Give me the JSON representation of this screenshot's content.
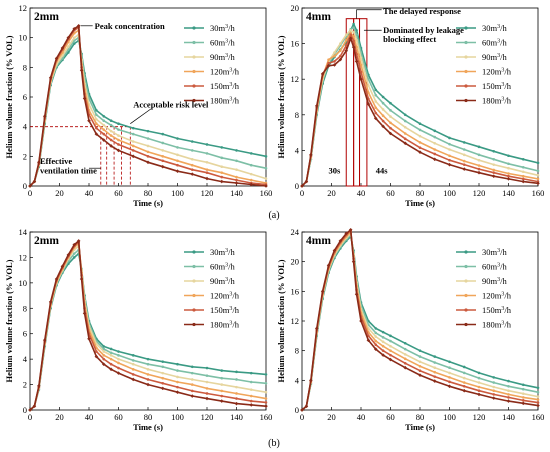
{
  "chart_data": [
    {
      "type": "line",
      "group": "(a)",
      "panel_tag": "2mm",
      "xlabel": "Time (s)",
      "ylabel": "Helium volume fraction (% VOL)",
      "xlim": [
        0,
        160
      ],
      "ylim": [
        0,
        12
      ],
      "xticks": [
        0,
        20,
        40,
        60,
        80,
        100,
        120,
        140,
        160
      ],
      "yticks": [
        0,
        2,
        4,
        6,
        8,
        10,
        12
      ],
      "legend_position": "top-right",
      "x": [
        0,
        3,
        6,
        10,
        14,
        18,
        22,
        26,
        30,
        33,
        35,
        37,
        40,
        45,
        50,
        55,
        60,
        70,
        80,
        90,
        100,
        110,
        120,
        130,
        140,
        150,
        160
      ],
      "series": [
        {
          "name": "30m³/h",
          "values": [
            0,
            0.3,
            1.3,
            4.2,
            6.8,
            8.0,
            8.5,
            9.0,
            9.6,
            9.8,
            8.9,
            7.6,
            6.2,
            5.1,
            4.7,
            4.4,
            4.2,
            3.9,
            3.7,
            3.5,
            3.2,
            3.0,
            2.8,
            2.6,
            2.4,
            2.2,
            2.0
          ]
        },
        {
          "name": "60m³/h",
          "values": [
            0,
            0.3,
            1.4,
            4.3,
            6.9,
            8.1,
            8.6,
            9.2,
            9.8,
            10.0,
            8.8,
            7.3,
            5.9,
            4.8,
            4.4,
            4.1,
            3.8,
            3.5,
            3.2,
            2.9,
            2.6,
            2.4,
            2.2,
            1.9,
            1.7,
            1.4,
            1.2
          ]
        },
        {
          "name": "90m³/h",
          "values": [
            0,
            0.3,
            1.4,
            4.4,
            7.0,
            8.2,
            8.8,
            9.4,
            10.0,
            10.2,
            8.5,
            6.9,
            5.5,
            4.5,
            4.1,
            3.7,
            3.4,
            3.0,
            2.7,
            2.4,
            2.1,
            1.8,
            1.6,
            1.3,
            1.1,
            0.8,
            0.5
          ]
        },
        {
          "name": "120m³/h",
          "values": [
            0,
            0.3,
            1.5,
            4.5,
            7.1,
            8.4,
            9.0,
            9.7,
            10.3,
            10.5,
            8.2,
            6.5,
            5.1,
            4.2,
            3.8,
            3.4,
            3.1,
            2.7,
            2.3,
            2.0,
            1.7,
            1.4,
            1.1,
            0.9,
            0.6,
            0.4,
            0.2
          ]
        },
        {
          "name": "150m³/h",
          "values": [
            0,
            0.3,
            1.5,
            4.6,
            7.2,
            8.5,
            9.2,
            9.9,
            10.5,
            10.7,
            8.0,
            6.2,
            4.8,
            3.9,
            3.5,
            3.1,
            2.8,
            2.4,
            2.0,
            1.7,
            1.4,
            1.1,
            0.9,
            0.6,
            0.4,
            0.2,
            0.1
          ]
        },
        {
          "name": "180m³/h",
          "values": [
            0,
            0.3,
            1.6,
            4.7,
            7.3,
            8.6,
            9.3,
            10.0,
            10.6,
            10.8,
            7.8,
            5.9,
            4.4,
            3.5,
            3.1,
            2.7,
            2.4,
            2.0,
            1.6,
            1.3,
            1.0,
            0.8,
            0.5,
            0.3,
            0.2,
            0.1,
            0.0
          ]
        }
      ],
      "annotations": [
        {
          "text": "Peak concentration",
          "x": 33,
          "y": 10.8
        },
        {
          "text": "Acceptable risk level",
          "x": 65,
          "y": 4
        },
        {
          "text": "Effective",
          "x": 45,
          "y": 0
        },
        {
          "text": "ventilation time",
          "x": 45,
          "y": 0
        }
      ],
      "reference_line": {
        "y": 4
      },
      "ventilation_times": [
        48,
        52,
        57,
        62,
        68
      ]
    },
    {
      "type": "line",
      "group": "(a)",
      "panel_tag": "4mm",
      "xlabel": "Time (s)",
      "ylabel": "Helium volume fraction (% VOL)",
      "xlim": [
        0,
        160
      ],
      "ylim": [
        0,
        20
      ],
      "xticks": [
        0,
        20,
        40,
        60,
        80,
        100,
        120,
        140,
        160
      ],
      "yticks": [
        0,
        4,
        8,
        12,
        16,
        20
      ],
      "legend_position": "top-right",
      "x": [
        0,
        3,
        6,
        10,
        14,
        18,
        22,
        26,
        30,
        33,
        35,
        37,
        40,
        45,
        50,
        55,
        60,
        70,
        80,
        90,
        100,
        110,
        120,
        130,
        140,
        150,
        160
      ],
      "series": [
        {
          "name": "30m³/h",
          "values": [
            0,
            0.5,
            3,
            8,
            11.5,
            13.5,
            14.5,
            15.3,
            16.2,
            17.5,
            18.2,
            17.5,
            15.5,
            12.5,
            10.8,
            10.0,
            9.3,
            8.0,
            7.0,
            6.2,
            5.4,
            4.9,
            4.4,
            3.9,
            3.4,
            3.0,
            2.6
          ]
        },
        {
          "name": "60m³/h",
          "values": [
            0,
            0.5,
            3,
            8.2,
            11.8,
            13.8,
            14.8,
            15.8,
            16.8,
            17.6,
            17.8,
            17.0,
            15.0,
            12.0,
            10.2,
            9.3,
            8.5,
            7.3,
            6.3,
            5.5,
            4.7,
            4.1,
            3.5,
            3.0,
            2.5,
            2.1,
            1.7
          ]
        },
        {
          "name": "90m³/h",
          "values": [
            0,
            0.5,
            3.2,
            8.4,
            12.0,
            14.0,
            15.0,
            16.0,
            17.0,
            17.5,
            17.3,
            16.4,
            14.4,
            11.3,
            9.5,
            8.6,
            7.8,
            6.6,
            5.6,
            4.8,
            4.1,
            3.5,
            2.9,
            2.4,
            2.0,
            1.6,
            1.2
          ]
        },
        {
          "name": "120m³/h",
          "values": [
            0,
            0.5,
            3.3,
            8.6,
            12.3,
            14.2,
            14.6,
            15.2,
            16.4,
            17.2,
            16.8,
            15.6,
            13.6,
            10.5,
            8.8,
            7.9,
            7.1,
            5.9,
            4.9,
            4.1,
            3.4,
            2.8,
            2.3,
            1.8,
            1.4,
            1.1,
            0.8
          ]
        },
        {
          "name": "150m³/h",
          "values": [
            0,
            0.5,
            3.4,
            8.8,
            12.5,
            13.8,
            14.0,
            14.6,
            15.8,
            17.0,
            16.3,
            14.8,
            12.8,
            9.8,
            8.2,
            7.3,
            6.5,
            5.3,
            4.3,
            3.6,
            2.9,
            2.4,
            1.9,
            1.5,
            1.1,
            0.8,
            0.5
          ]
        },
        {
          "name": "180m³/h",
          "values": [
            0,
            0.5,
            3.5,
            9.0,
            12.6,
            13.5,
            13.6,
            14.2,
            15.2,
            16.6,
            15.6,
            14.0,
            12.0,
            9.2,
            7.6,
            6.7,
            5.9,
            4.8,
            3.8,
            3.0,
            2.4,
            1.9,
            1.5,
            1.1,
            0.8,
            0.5,
            0.3
          ]
        }
      ],
      "annotations": [
        {
          "text": "The delayed response",
          "x": 52,
          "y": 19.5
        },
        {
          "text": "Dominated by leakage",
          "x": 52,
          "y": 17.5
        },
        {
          "text": "blocking effect",
          "x": 52,
          "y": 16.6
        },
        {
          "text": "30s",
          "x": 30,
          "y": 1.2
        },
        {
          "text": "44s",
          "x": 44,
          "y": 1.2
        }
      ],
      "highlight_boxes": [
        {
          "x": [
            30,
            35
          ],
          "y": [
            0,
            18.8
          ]
        },
        {
          "x": [
            35,
            39
          ],
          "y": [
            0,
            18.8
          ]
        },
        {
          "x": [
            39,
            44
          ],
          "y": [
            0,
            18.8
          ]
        }
      ]
    },
    {
      "type": "line",
      "group": "(b)",
      "panel_tag": "2mm",
      "xlabel": "Time (s)",
      "ylabel": "Helium volume fraction (% VOL)",
      "xlim": [
        0,
        160
      ],
      "ylim": [
        0,
        14
      ],
      "xticks": [
        0,
        20,
        40,
        60,
        80,
        100,
        120,
        140,
        160
      ],
      "yticks": [
        0,
        2,
        4,
        6,
        8,
        10,
        12,
        14
      ],
      "legend_position": "top-right",
      "x": [
        0,
        3,
        6,
        10,
        14,
        18,
        22,
        26,
        30,
        33,
        35,
        37,
        40,
        45,
        50,
        55,
        60,
        70,
        80,
        90,
        100,
        110,
        120,
        130,
        140,
        150,
        160
      ],
      "series": [
        {
          "name": "30m³/h",
          "values": [
            0,
            0.3,
            1.6,
            5.0,
            8.0,
            9.8,
            10.8,
            11.5,
            12.0,
            12.3,
            11.0,
            9.0,
            7.0,
            5.6,
            5.0,
            4.8,
            4.6,
            4.3,
            4.0,
            3.8,
            3.6,
            3.4,
            3.3,
            3.1,
            3.0,
            2.9,
            2.8
          ]
        },
        {
          "name": "60m³/h",
          "values": [
            0,
            0.3,
            1.7,
            5.1,
            8.1,
            9.9,
            10.9,
            11.7,
            12.3,
            12.6,
            11.1,
            8.8,
            6.8,
            5.4,
            4.8,
            4.5,
            4.3,
            3.9,
            3.6,
            3.4,
            3.1,
            2.9,
            2.7,
            2.5,
            2.4,
            2.2,
            2.1
          ]
        },
        {
          "name": "90m³/h",
          "values": [
            0,
            0.3,
            1.7,
            5.2,
            8.2,
            10.0,
            11.0,
            11.9,
            12.6,
            12.9,
            11.0,
            8.6,
            6.6,
            5.2,
            4.6,
            4.3,
            4.0,
            3.6,
            3.2,
            2.9,
            2.6,
            2.4,
            2.2,
            2.0,
            1.8,
            1.6,
            1.4
          ]
        },
        {
          "name": "120m³/h",
          "values": [
            0,
            0.3,
            1.8,
            5.3,
            8.3,
            10.1,
            11.1,
            12.0,
            12.8,
            13.1,
            10.8,
            8.3,
            6.3,
            4.9,
            4.3,
            4.0,
            3.7,
            3.2,
            2.8,
            2.5,
            2.2,
            2.0,
            1.7,
            1.5,
            1.3,
            1.1,
            0.9
          ]
        },
        {
          "name": "150m³/h",
          "values": [
            0,
            0.3,
            1.8,
            5.4,
            8.4,
            10.2,
            11.2,
            12.1,
            12.9,
            13.2,
            10.6,
            8.0,
            6.0,
            4.6,
            4.0,
            3.6,
            3.3,
            2.8,
            2.4,
            2.1,
            1.8,
            1.5,
            1.3,
            1.1,
            0.9,
            0.7,
            0.6
          ]
        },
        {
          "name": "180m³/h",
          "values": [
            0,
            0.3,
            1.9,
            5.5,
            8.5,
            10.3,
            11.3,
            12.2,
            13.0,
            13.3,
            10.3,
            7.6,
            5.6,
            4.2,
            3.6,
            3.2,
            2.9,
            2.4,
            2.0,
            1.7,
            1.4,
            1.1,
            0.9,
            0.7,
            0.5,
            0.4,
            0.3
          ]
        }
      ]
    },
    {
      "type": "line",
      "group": "(b)",
      "panel_tag": "4mm",
      "xlabel": "Time (s)",
      "ylabel": "Helium volume fraction (% VOL)",
      "xlim": [
        0,
        160
      ],
      "ylim": [
        0,
        24
      ],
      "xticks": [
        0,
        20,
        40,
        60,
        80,
        100,
        120,
        140,
        160
      ],
      "yticks": [
        0,
        4,
        8,
        12,
        16,
        20,
        24
      ],
      "legend_position": "top-right",
      "x": [
        0,
        3,
        6,
        10,
        14,
        18,
        22,
        26,
        30,
        33,
        35,
        37,
        40,
        45,
        50,
        55,
        60,
        70,
        80,
        90,
        100,
        110,
        120,
        130,
        140,
        150,
        160
      ],
      "series": [
        {
          "name": "30m³/h",
          "values": [
            0,
            0.5,
            3.5,
            10,
            15.0,
            18.5,
            20.5,
            21.8,
            22.8,
            23.4,
            21.5,
            18.0,
            14.5,
            12.0,
            11.0,
            10.5,
            10.0,
            9.0,
            8.0,
            7.2,
            6.5,
            5.8,
            5.0,
            4.4,
            3.9,
            3.4,
            3.0
          ]
        },
        {
          "name": "60m³/h",
          "values": [
            0,
            0.5,
            3.6,
            10.2,
            15.2,
            18.7,
            20.7,
            22.0,
            23.0,
            23.6,
            21.3,
            17.6,
            14.1,
            11.5,
            10.4,
            9.8,
            9.3,
            8.2,
            7.2,
            6.4,
            5.7,
            5.0,
            4.3,
            3.7,
            3.2,
            2.8,
            2.4
          ]
        },
        {
          "name": "90m³/h",
          "values": [
            0,
            0.5,
            3.7,
            10.4,
            15.4,
            18.9,
            20.9,
            22.2,
            23.2,
            23.8,
            21.0,
            17.2,
            13.6,
            11.0,
            9.9,
            9.2,
            8.6,
            7.5,
            6.5,
            5.7,
            5.0,
            4.3,
            3.7,
            3.1,
            2.6,
            2.2,
            1.8
          ]
        },
        {
          "name": "120m³/h",
          "values": [
            0,
            0.5,
            3.8,
            10.6,
            15.6,
            19.1,
            21.1,
            22.4,
            23.4,
            24.0,
            20.7,
            16.7,
            13.1,
            10.5,
            9.3,
            8.6,
            8.0,
            6.9,
            5.9,
            5.1,
            4.4,
            3.7,
            3.1,
            2.6,
            2.1,
            1.7,
            1.4
          ]
        },
        {
          "name": "150m³/h",
          "values": [
            0,
            0.5,
            3.9,
            10.8,
            15.8,
            19.3,
            21.3,
            22.6,
            23.6,
            24.2,
            20.4,
            16.2,
            12.6,
            10.0,
            8.8,
            8.0,
            7.4,
            6.3,
            5.3,
            4.5,
            3.8,
            3.2,
            2.6,
            2.1,
            1.7,
            1.3,
            1.0
          ]
        },
        {
          "name": "180m³/h",
          "values": [
            0,
            0.5,
            4.0,
            11.0,
            16.0,
            19.5,
            21.5,
            22.8,
            23.8,
            24.3,
            20.0,
            15.6,
            12.0,
            9.4,
            8.2,
            7.4,
            6.8,
            5.7,
            4.7,
            3.9,
            3.2,
            2.6,
            2.1,
            1.6,
            1.2,
            0.9,
            0.6
          ]
        }
      ]
    }
  ],
  "series_colors": [
    "#3a9a84",
    "#7dbfa6",
    "#e6d59e",
    "#f0a55a",
    "#cc5a3e",
    "#8a2a18"
  ],
  "figure_labels": [
    "(a)",
    "(b)"
  ]
}
